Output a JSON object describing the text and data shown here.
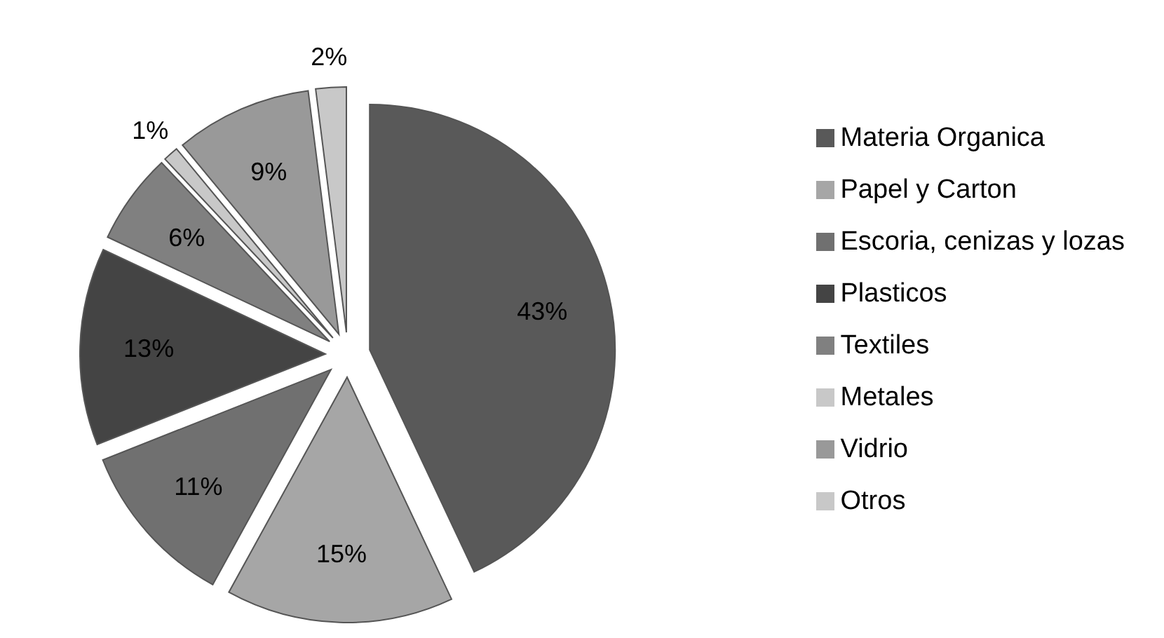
{
  "chart_data": {
    "type": "pie",
    "categories": [
      "Materia Organica",
      "Papel y Carton",
      "Escoria, cenizas y lozas",
      "Plasticos",
      "Textiles",
      "Metales",
      "Vidrio",
      "Otros"
    ],
    "values": [
      43,
      15,
      11,
      13,
      6,
      1,
      9,
      2
    ],
    "value_labels": [
      "43%",
      "15%",
      "11%",
      "13%",
      "6%",
      "1%",
      "9%",
      "2%"
    ],
    "colors": [
      "#595959",
      "#a6a6a6",
      "#707070",
      "#444444",
      "#808080",
      "#c8c8c8",
      "#999999",
      "#c8c8c8"
    ],
    "legend": "right"
  }
}
